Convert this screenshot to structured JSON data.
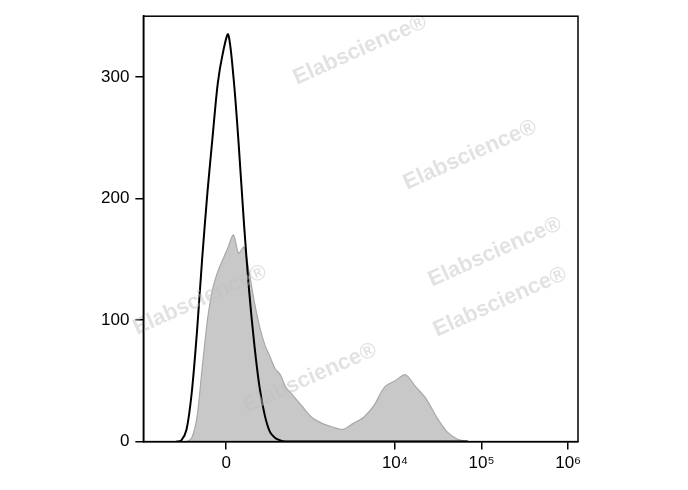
{
  "chart_data": {
    "type": "histogram_overlay",
    "annotations": [
      "Elabscience®"
    ],
    "x": [
      -395,
      -335,
      -282,
      -235,
      -192,
      -153,
      -116,
      -83,
      -50,
      -19,
      12,
      44,
      76,
      110,
      145,
      184,
      226,
      272,
      324,
      382,
      447,
      521,
      605,
      810,
      1078,
      1430,
      1890,
      2500,
      3300,
      4350,
      5750,
      7600,
      10000,
      13200,
      17400,
      23000,
      30300,
      40000,
      52800,
      69600
    ],
    "series": [
      {
        "type": "area",
        "color": "#c8c8c8",
        "values": [
          0,
          0,
          0,
          3,
          20,
          60,
          100,
          125,
          140,
          150,
          160,
          170,
          155,
          160,
          140,
          115,
          95,
          80,
          70,
          60,
          55,
          45,
          40,
          30,
          20,
          15,
          12,
          10,
          15,
          20,
          30,
          45,
          50,
          55,
          45,
          35,
          20,
          8,
          2,
          0
        ]
      },
      {
        "type": "line",
        "color": "#000000",
        "values": [
          0,
          1,
          10,
          40,
          90,
          150,
          205,
          250,
          295,
          320,
          335,
          300,
          245,
          180,
          125,
          80,
          45,
          22,
          8,
          3,
          1,
          0,
          0,
          0,
          0,
          0,
          0,
          0,
          0,
          0,
          0,
          0,
          0,
          0,
          0,
          0,
          0,
          0,
          0,
          0
        ]
      }
    ],
    "xlim": [
      -1000,
      1300000
    ],
    "xticks": [
      0,
      {
        "value": 10000,
        "label": "10⁴"
      },
      {
        "value": 100000,
        "label": "10⁵"
      },
      {
        "value": 1000000,
        "label": "10⁶"
      }
    ],
    "ylim": [
      0,
      350
    ],
    "yticks": [
      0,
      100,
      200,
      300
    ],
    "grid": false
  }
}
